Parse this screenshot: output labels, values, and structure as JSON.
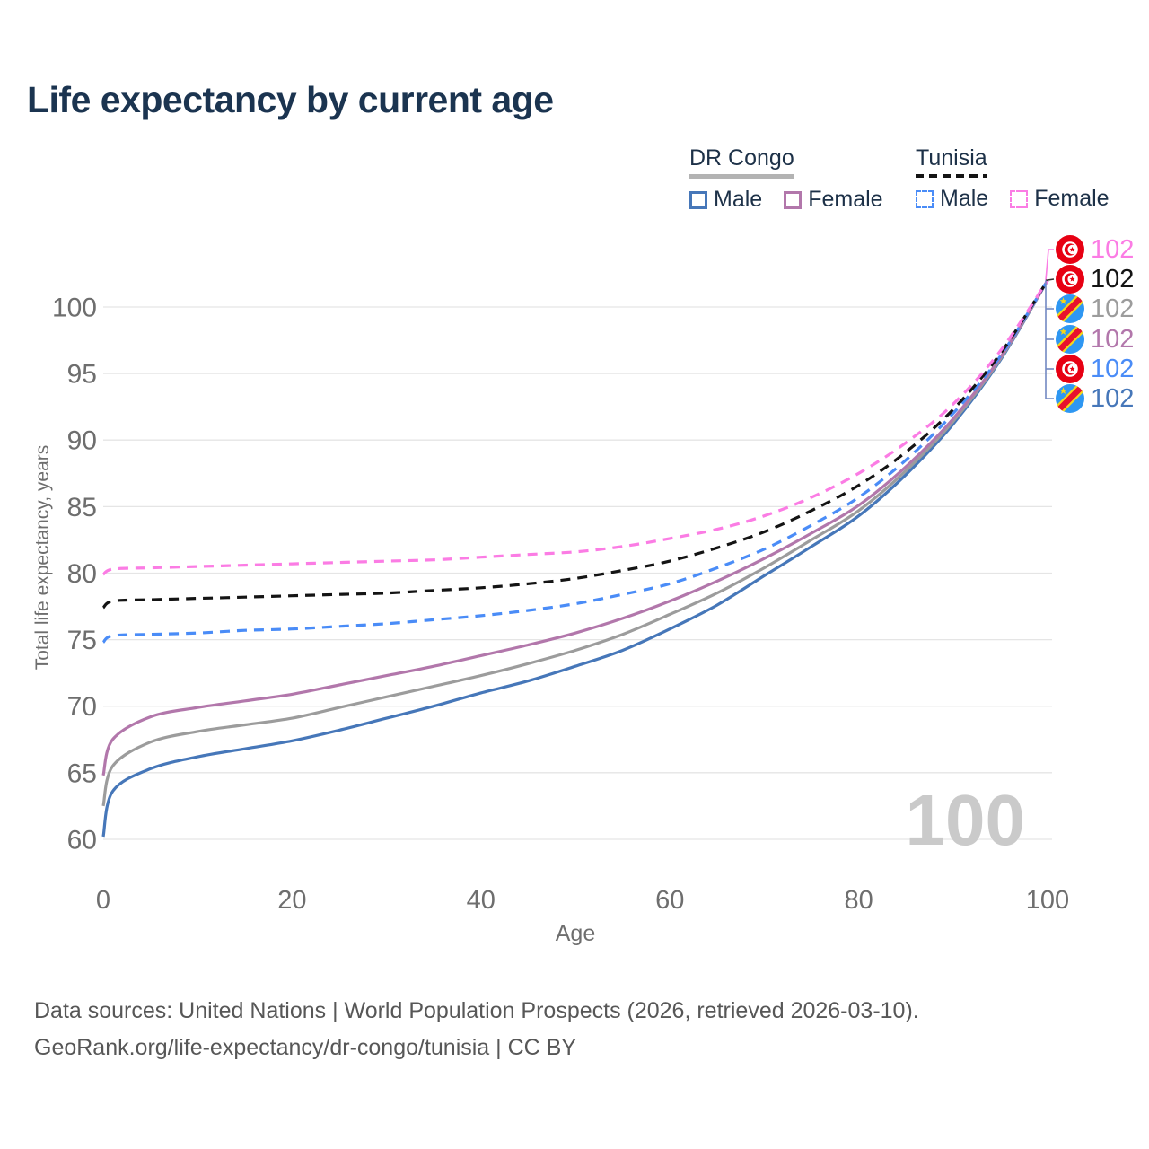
{
  "title": "Life expectancy by current age",
  "legend": {
    "groups": [
      {
        "label": "DR Congo",
        "line_style": "solid",
        "underline_color": "#b3b3b3",
        "items": [
          {
            "label": "Male",
            "series": "drcongo-male",
            "color": "#4677b9",
            "dash": false
          },
          {
            "label": "Female",
            "series": "drcongo-female",
            "color": "#b277ab",
            "dash": false
          }
        ]
      },
      {
        "label": "Tunisia",
        "line_style": "dashed",
        "underline_color": "#141414",
        "items": [
          {
            "label": "Male",
            "series": "tunisia-male",
            "color": "#4a8cf7",
            "dash": true
          },
          {
            "label": "Female",
            "series": "tunisia-female",
            "color": "#fb7ce4",
            "dash": true
          }
        ]
      }
    ]
  },
  "axes": {
    "x_title": "Age",
    "y_title": "Total life expectancy, years",
    "x_ticks": [
      0,
      20,
      40,
      60,
      80,
      100
    ],
    "y_ticks": [
      60,
      65,
      70,
      75,
      80,
      85,
      90,
      95,
      100
    ]
  },
  "watermark": "100",
  "end_labels": [
    {
      "value": "102",
      "flag": "tunisia",
      "series": "tunisia-female",
      "color": "#fb7ce4"
    },
    {
      "value": "102",
      "flag": "tunisia",
      "series": "tunisia-total",
      "color": "#141414"
    },
    {
      "value": "102",
      "flag": "drcongo",
      "series": "drcongo-total",
      "color": "#9c9c9c"
    },
    {
      "value": "102",
      "flag": "drcongo",
      "series": "drcongo-female",
      "color": "#b277ab"
    },
    {
      "value": "102",
      "flag": "tunisia",
      "series": "tunisia-male",
      "color": "#4a8cf7"
    },
    {
      "value": "102",
      "flag": "drcongo",
      "series": "drcongo-male",
      "color": "#4677b9"
    }
  ],
  "footer": {
    "line1": "Data sources: United Nations | World Population Prospects (2026, retrieved 2026-03-10).",
    "line2": "GeoRank.org/life-expectancy/dr-congo/tunisia | CC BY"
  },
  "chart_data": {
    "type": "line",
    "title": "Life expectancy by current age",
    "xlabel": "Age",
    "ylabel": "Total life expectancy, years",
    "xlim": [
      0,
      100
    ],
    "ylim": [
      58,
      103
    ],
    "grid": true,
    "legend_position": "top-right",
    "x": [
      0,
      1,
      5,
      10,
      15,
      20,
      25,
      30,
      35,
      40,
      45,
      50,
      55,
      60,
      65,
      70,
      75,
      80,
      85,
      90,
      95,
      100
    ],
    "series": [
      {
        "name": "DR Congo Male",
        "key": "drcongo-male",
        "color": "#4677b9",
        "dash": false,
        "values": [
          60.2,
          63.6,
          65.3,
          66.2,
          66.8,
          67.4,
          68.2,
          69.1,
          70.0,
          71.0,
          71.9,
          73.0,
          74.2,
          75.8,
          77.6,
          79.8,
          82.0,
          84.3,
          87.4,
          91.2,
          96.0,
          102
        ]
      },
      {
        "name": "DR Congo Total",
        "key": "drcongo-total",
        "color": "#9c9c9c",
        "dash": false,
        "values": [
          62.5,
          65.5,
          67.3,
          68.1,
          68.6,
          69.1,
          69.9,
          70.7,
          71.5,
          72.3,
          73.2,
          74.2,
          75.4,
          76.9,
          78.5,
          80.4,
          82.5,
          84.7,
          87.7,
          91.4,
          96.1,
          102
        ]
      },
      {
        "name": "DR Congo Female",
        "key": "drcongo-female",
        "color": "#b277ab",
        "dash": false,
        "values": [
          64.8,
          67.5,
          69.2,
          69.9,
          70.4,
          70.9,
          71.6,
          72.3,
          73.0,
          73.8,
          74.6,
          75.5,
          76.6,
          77.9,
          79.4,
          81.1,
          83.0,
          85.1,
          88.0,
          91.6,
          96.2,
          102
        ]
      },
      {
        "name": "Tunisia Male",
        "key": "tunisia-male",
        "color": "#4a8cf7",
        "dash": true,
        "values": [
          74.8,
          75.3,
          75.4,
          75.5,
          75.7,
          75.8,
          76.0,
          76.2,
          76.5,
          76.8,
          77.2,
          77.7,
          78.4,
          79.2,
          80.4,
          81.8,
          83.6,
          85.7,
          88.5,
          92.0,
          96.3,
          102
        ]
      },
      {
        "name": "Tunisia Total",
        "key": "tunisia-total",
        "color": "#141414",
        "dash": true,
        "values": [
          77.4,
          77.9,
          78.0,
          78.1,
          78.2,
          78.3,
          78.4,
          78.5,
          78.7,
          78.9,
          79.2,
          79.6,
          80.2,
          80.9,
          81.9,
          83.1,
          84.7,
          86.6,
          89.1,
          92.3,
          96.5,
          102
        ]
      },
      {
        "name": "Tunisia Female",
        "key": "tunisia-female",
        "color": "#fb7ce4",
        "dash": true,
        "values": [
          79.9,
          80.3,
          80.4,
          80.5,
          80.6,
          80.7,
          80.8,
          80.9,
          81.0,
          81.2,
          81.4,
          81.6,
          82.0,
          82.6,
          83.3,
          84.3,
          85.7,
          87.5,
          89.8,
          92.7,
          96.7,
          102
        ]
      }
    ]
  }
}
